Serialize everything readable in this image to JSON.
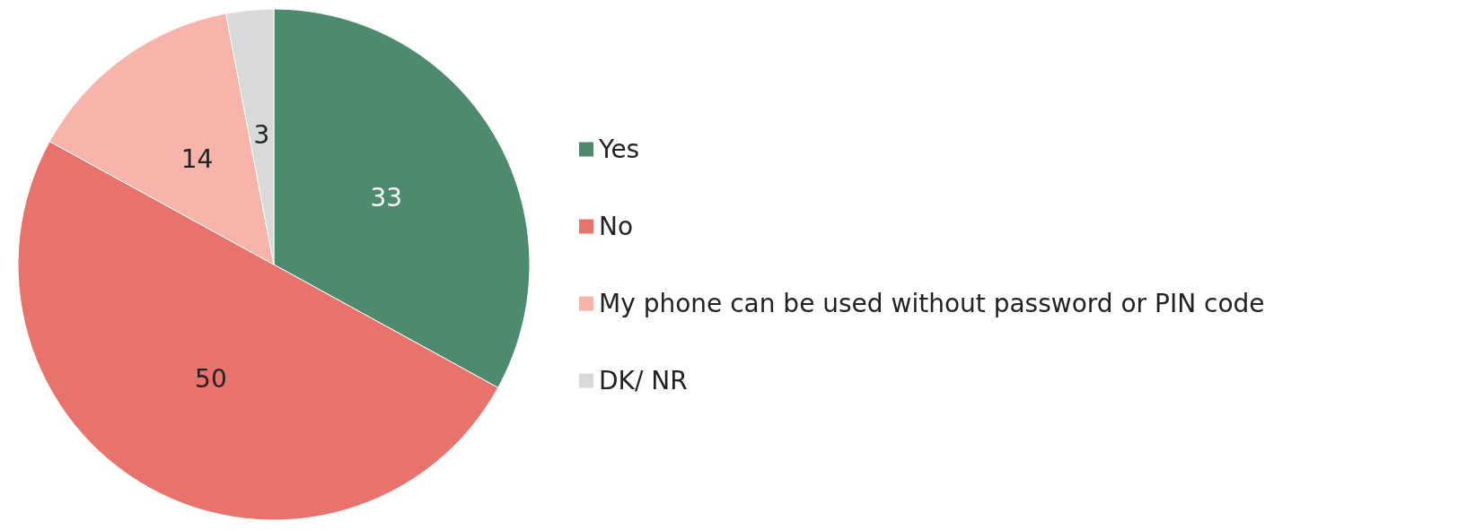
{
  "chart_data": {
    "type": "pie",
    "categories": [
      "Yes",
      "No",
      "My phone can be used without password or PIN code",
      "DK/ NR"
    ],
    "values": [
      33,
      50,
      14,
      3
    ],
    "colors": [
      "#4e8a6e",
      "#e8736c",
      "#f8b4ab",
      "#d9d9d9"
    ],
    "data_labels": true,
    "legend": "right"
  }
}
